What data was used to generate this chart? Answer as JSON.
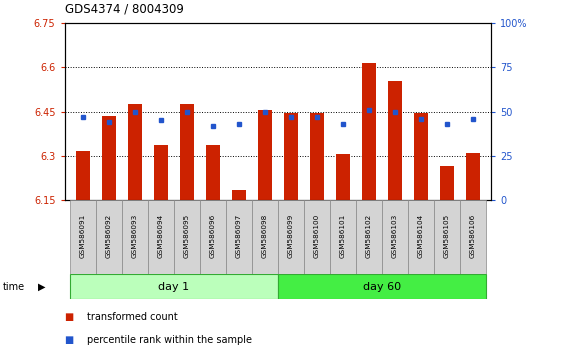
{
  "title": "GDS4374 / 8004309",
  "samples": [
    "GSM586091",
    "GSM586092",
    "GSM586093",
    "GSM586094",
    "GSM586095",
    "GSM586096",
    "GSM586097",
    "GSM586098",
    "GSM586099",
    "GSM586100",
    "GSM586101",
    "GSM586102",
    "GSM586103",
    "GSM586104",
    "GSM586105",
    "GSM586106"
  ],
  "red_values": [
    6.315,
    6.435,
    6.475,
    6.335,
    6.475,
    6.335,
    6.185,
    6.455,
    6.445,
    6.445,
    6.305,
    6.615,
    6.555,
    6.445,
    6.265,
    6.31
  ],
  "blue_values": [
    47,
    44,
    50,
    45,
    50,
    42,
    43,
    50,
    47,
    47,
    43,
    51,
    50,
    46,
    43,
    46
  ],
  "ylim_left": [
    6.15,
    6.75
  ],
  "ylim_right": [
    0,
    100
  ],
  "yticks_left": [
    6.15,
    6.3,
    6.45,
    6.6,
    6.75
  ],
  "yticks_right": [
    0,
    25,
    50,
    75,
    100
  ],
  "ytick_labels_left": [
    "6.15",
    "6.3",
    "6.45",
    "6.6",
    "6.75"
  ],
  "ytick_labels_right": [
    "0",
    "25",
    "50",
    "75",
    "100%"
  ],
  "grid_lines": [
    6.3,
    6.45,
    6.6
  ],
  "bar_color": "#cc2200",
  "blue_color": "#2255cc",
  "day1_label": "day 1",
  "day60_label": "day 60",
  "day1_bg": "#bbffbb",
  "day60_bg": "#44ee44",
  "sample_box_bg": "#d4d4d4",
  "bar_width": 0.55
}
